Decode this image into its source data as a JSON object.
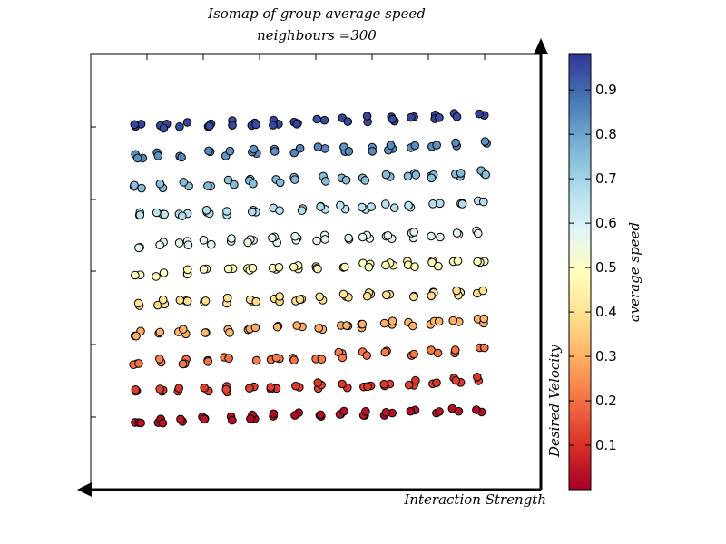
{
  "chart_data": {
    "type": "scatter",
    "title": "Isomap of group average speed",
    "subtitle": "neighbours =300",
    "xlabel": "Interaction Strength",
    "ylabel": "Desired Velocity",
    "colorbar": {
      "label": "average speed",
      "range": [
        0.0,
        0.98
      ],
      "ticks": [
        "0.1",
        "0.2",
        "0.3",
        "0.4",
        "0.5",
        "0.6",
        "0.7",
        "0.8",
        "0.9"
      ],
      "colormap": "RdYlBu"
    },
    "grid": false,
    "point_groups": {
      "columns": 16,
      "rows": 11,
      "row_speeds": [
        0.03,
        0.12,
        0.21,
        0.3,
        0.39,
        0.48,
        0.57,
        0.66,
        0.75,
        0.84,
        0.95
      ]
    }
  }
}
